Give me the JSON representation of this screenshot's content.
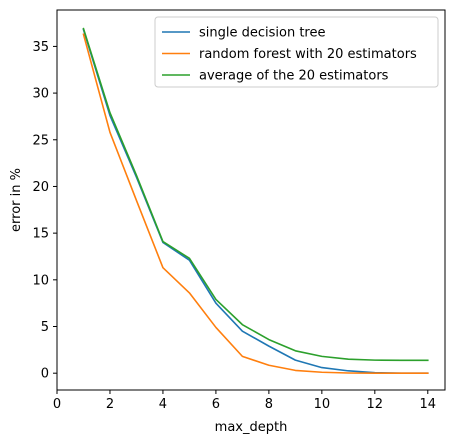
{
  "chart_data": {
    "type": "line",
    "title": "",
    "xlabel": "max_depth",
    "ylabel": "error in %",
    "xlim": [
      0,
      14.65
    ],
    "ylim": [
      -1.8,
      38.9
    ],
    "xticks": [
      "0",
      "2",
      "4",
      "6",
      "8",
      "10",
      "12",
      "14"
    ],
    "yticks": [
      "0",
      "5",
      "10",
      "15",
      "20",
      "25",
      "30",
      "35"
    ],
    "grid": false,
    "legend_position": "top-right",
    "x": [
      1,
      2,
      3,
      4,
      5,
      6,
      7,
      8,
      9,
      10,
      11,
      12,
      13,
      14
    ],
    "series": [
      {
        "name": "single decision tree",
        "color": "#1f77b4",
        "values": [
          36.8,
          27.6,
          21.0,
          14.0,
          12.1,
          7.5,
          4.5,
          2.9,
          1.4,
          0.6,
          0.25,
          0.05,
          0.0,
          0.0
        ]
      },
      {
        "name": "random forest with 20 estimators",
        "color": "#ff7f0e",
        "values": [
          36.3,
          25.8,
          18.5,
          11.3,
          8.6,
          4.9,
          1.8,
          0.85,
          0.3,
          0.1,
          0.02,
          0.0,
          0.0,
          0.0
        ]
      },
      {
        "name": "average of the 20 estimators",
        "color": "#2ca02c",
        "values": [
          36.9,
          27.9,
          21.2,
          14.1,
          12.3,
          7.9,
          5.2,
          3.6,
          2.4,
          1.8,
          1.5,
          1.4,
          1.38,
          1.38
        ]
      }
    ]
  }
}
